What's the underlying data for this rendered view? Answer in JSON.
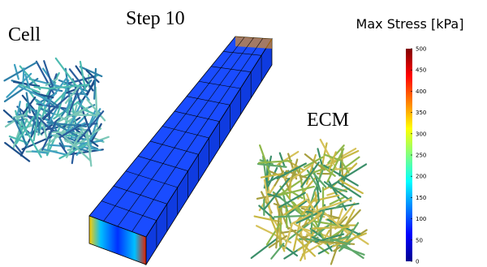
{
  "labels": {
    "cell": "Cell",
    "step": "Step 10",
    "ecm": "ECM"
  },
  "colorbar": {
    "title": "Max Stress [kPa]",
    "lim": [
      0,
      500
    ],
    "ticks": [
      0,
      50,
      100,
      150,
      200,
      250,
      300,
      350,
      400,
      450,
      500
    ]
  }
}
